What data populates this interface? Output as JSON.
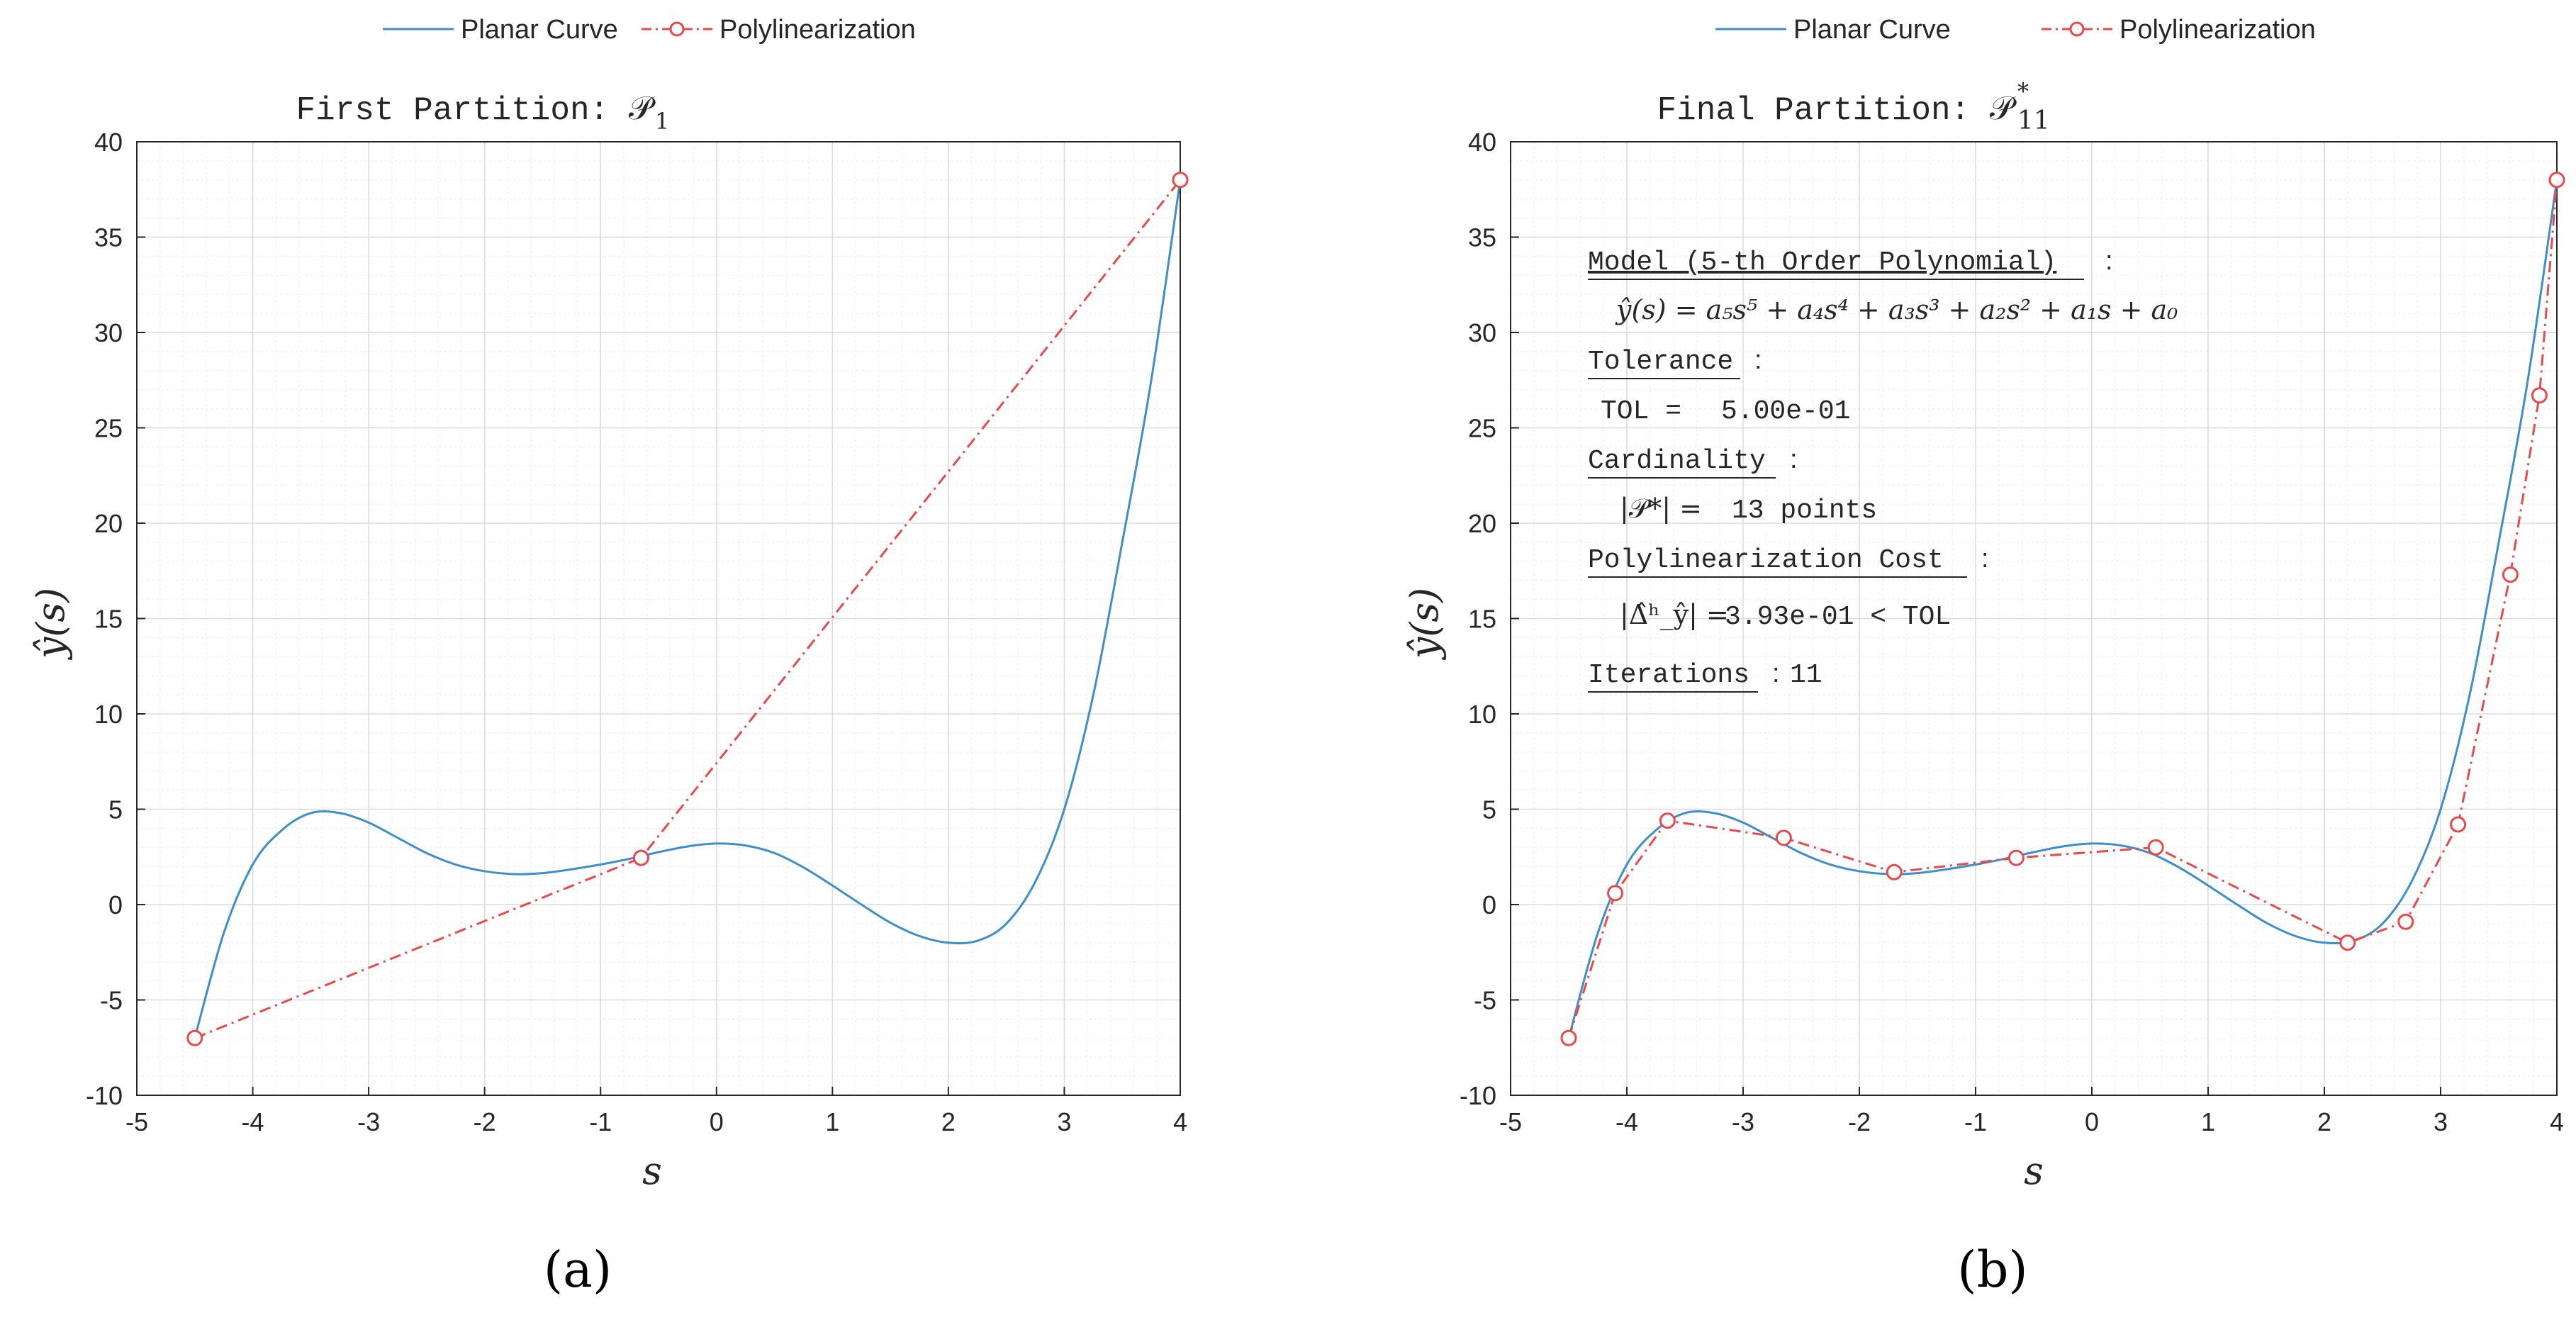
{
  "colors": {
    "curve": "#3d8ec9",
    "polyline": "#e8494a",
    "grid_major": "#dcdcdc",
    "grid_minor": "#efefef",
    "axis": "#262626"
  },
  "legend": {
    "curve_label": "Planar Curve",
    "polyline_label": "Polylinearization",
    "placement": "top"
  },
  "chart_data": [
    {
      "type": "line",
      "panel_label": "(a)",
      "title": "First Partition: 𝒫",
      "title_sub": "1",
      "xlabel": "s",
      "ylabel": "ŷ(s)",
      "xlim": [
        -5,
        4
      ],
      "ylim": [
        -10,
        40
      ],
      "xticks": [
        -5,
        -4,
        -3,
        -2,
        -1,
        0,
        1,
        2,
        3,
        4
      ],
      "yticks": [
        -10,
        -5,
        0,
        5,
        10,
        15,
        20,
        25,
        30,
        35,
        40
      ],
      "grid": true,
      "series": [
        {
          "name": "Planar Curve",
          "x": [
            -4.5,
            -4.25,
            -4.0,
            -3.75,
            -3.5,
            -3.25,
            -3.0,
            -2.75,
            -2.5,
            -2.25,
            -2.0,
            -1.75,
            -1.5,
            -1.25,
            -1.0,
            -0.75,
            -0.5,
            -0.25,
            0.0,
            0.25,
            0.5,
            0.75,
            1.0,
            1.25,
            1.5,
            1.75,
            2.0,
            2.25,
            2.5,
            2.75,
            3.0,
            3.25,
            3.5,
            3.75,
            4.0
          ],
          "y": [
            -7.0,
            -1.5,
            2.1,
            3.9,
            4.8,
            4.8,
            4.3,
            3.5,
            2.7,
            2.1,
            1.75,
            1.6,
            1.65,
            1.85,
            2.1,
            2.4,
            2.75,
            3.05,
            3.2,
            3.1,
            2.7,
            1.95,
            1.0,
            0.0,
            -0.95,
            -1.65,
            -2.0,
            -1.9,
            -1.0,
            1.2,
            5.0,
            11.0,
            19.0,
            27.5,
            38.0
          ]
        },
        {
          "name": "Polylinearization",
          "x": [
            -4.5,
            -0.65,
            4.0
          ],
          "y": [
            -7.0,
            2.45,
            38.0
          ]
        }
      ]
    },
    {
      "type": "line",
      "panel_label": "(b)",
      "title": "Final Partition: 𝒫",
      "title_sub": "11",
      "title_sup": "*",
      "xlabel": "s",
      "ylabel": "ŷ(s)",
      "xlim": [
        -5,
        4
      ],
      "ylim": [
        -10,
        40
      ],
      "xticks": [
        -5,
        -4,
        -3,
        -2,
        -1,
        0,
        1,
        2,
        3,
        4
      ],
      "yticks": [
        -10,
        -5,
        0,
        5,
        10,
        15,
        20,
        25,
        30,
        35,
        40
      ],
      "grid": true,
      "series": [
        {
          "name": "Planar Curve",
          "x": [
            -4.5,
            -4.25,
            -4.0,
            -3.75,
            -3.5,
            -3.25,
            -3.0,
            -2.75,
            -2.5,
            -2.25,
            -2.0,
            -1.75,
            -1.5,
            -1.25,
            -1.0,
            -0.75,
            -0.5,
            -0.25,
            0.0,
            0.25,
            0.5,
            0.75,
            1.0,
            1.25,
            1.5,
            1.75,
            2.0,
            2.25,
            2.5,
            2.75,
            3.0,
            3.25,
            3.5,
            3.75,
            4.0
          ],
          "y": [
            -7.0,
            -1.5,
            2.1,
            3.9,
            4.8,
            4.8,
            4.3,
            3.5,
            2.7,
            2.1,
            1.75,
            1.6,
            1.65,
            1.85,
            2.1,
            2.4,
            2.75,
            3.05,
            3.2,
            3.1,
            2.7,
            1.95,
            1.0,
            0.0,
            -0.95,
            -1.65,
            -2.0,
            -1.9,
            -1.0,
            1.2,
            5.0,
            11.0,
            19.0,
            27.5,
            38.0
          ]
        },
        {
          "name": "Polylinearization",
          "x": [
            -4.5,
            -4.1,
            -3.65,
            -2.65,
            -1.7,
            -0.65,
            0.55,
            2.2,
            2.7,
            3.15,
            3.6,
            3.85,
            4.0
          ],
          "y": [
            -7.0,
            0.6,
            4.4,
            3.5,
            1.7,
            2.45,
            3.0,
            -2.0,
            -0.9,
            4.2,
            17.3,
            26.7,
            38.0
          ]
        }
      ],
      "annotations": {
        "model_heading": "Model (5-th Order Polynomial)",
        "model_equation": "ŷ(s) = a₅s⁵ + a₄s⁴ + a₃s³ + a₂s² + a₁s + a₀",
        "tolerance_heading": "Tolerance",
        "tolerance_lhs": "TOL = ",
        "tolerance_value": "5.00e-01",
        "cardinality_heading": "Cardinality",
        "cardinality_lhs": "|𝒫*| = ",
        "cardinality_value": "13 points",
        "cost_heading": "Polylinearization Cost",
        "cost_lhs": "|Δ̂ʰ_ŷ| = ",
        "cost_value": "3.93e-01 < TOL",
        "iterations_heading": "Iterations",
        "iterations_value": "11",
        "separator": ":"
      }
    }
  ]
}
